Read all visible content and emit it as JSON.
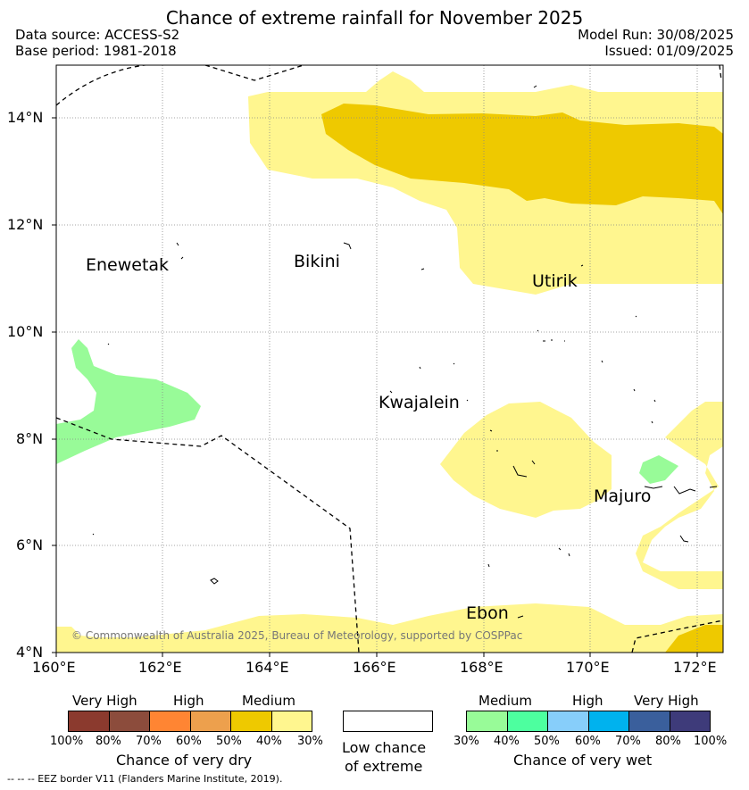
{
  "title": "Chance of extreme rainfall for November 2025",
  "header": {
    "data_source": "Data source: ACCESS-S2",
    "base_period": "Base period: 1981-2018",
    "model_run": "Model Run: 30/08/2025",
    "issued": "Issued: 01/09/2025"
  },
  "map": {
    "lat_ticks": [
      "14°N",
      "12°N",
      "10°N",
      "8°N",
      "6°N",
      "4°N"
    ],
    "lon_ticks": [
      "160°E",
      "162°E",
      "164°E",
      "166°E",
      "168°E",
      "170°E",
      "172°E"
    ],
    "places": {
      "enewetak": "Enewetak",
      "bikini": "Bikini",
      "utirik": "Utirik",
      "kwajalein": "Kwajalein",
      "majuro": "Majuro",
      "ebon": "Ebon"
    },
    "copyright": "© Commonwealth of Australia 2025, Bureau of Meteorology, supported by COSPPac"
  },
  "legend_dry": {
    "levels": [
      "Very High",
      "High",
      "Medium"
    ],
    "ticks": [
      "100%",
      "80%",
      "70%",
      "60%",
      "50%",
      "40%",
      "30%"
    ],
    "colors": [
      "#8b3a2e",
      "#8c4c3c",
      "#ff8533",
      "#eda04d",
      "#eec900",
      "#fff68f"
    ],
    "title": "Chance of very dry"
  },
  "legend_low": {
    "line1": "Low chance",
    "line2": "of extreme",
    "color": "#ffffff"
  },
  "legend_wet": {
    "levels": [
      "Medium",
      "High",
      "Very High"
    ],
    "ticks": [
      "30%",
      "40%",
      "50%",
      "60%",
      "70%",
      "80%",
      "100%"
    ],
    "colors": [
      "#98fb98",
      "#4dff9f",
      "#87cefa",
      "#00b2ee",
      "#3a5f9c",
      "#3e3b7a"
    ],
    "title": "Chance of very wet"
  },
  "eez_note": "--  --  -- EEZ border V11 (Flanders Marine Institute, 2019)."
}
